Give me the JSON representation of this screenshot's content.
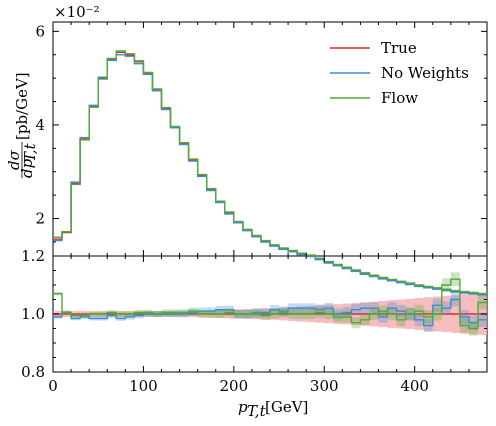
{
  "chart_data": {
    "type": "line",
    "scale_label": "×10⁻²",
    "ylabel": "dσ/dp_T,t [pb/GeV]",
    "ylabel_main": "[pb/GeV]",
    "ylabel_frac_num": "dσ",
    "ylabel_frac_den": "dp",
    "ylabel_frac_sub": "T,t",
    "xlabel": "p",
    "xlabel_sub": "T,t",
    "xlabel_unit": "[GeV]",
    "xlim": [
      0,
      480
    ],
    "x_ticks": [
      "0",
      "100",
      "200",
      "300",
      "400"
    ],
    "x_tick_values": [
      0,
      100,
      200,
      300,
      400
    ],
    "top_panel": {
      "ylim": [
        1.2,
        6.2
      ],
      "y_ticks": [
        "2",
        "4",
        "6"
      ],
      "y_tick_values": [
        2,
        4,
        6
      ],
      "y_bottom_label": "1.2",
      "bin_edges": [
        0,
        10,
        20,
        30,
        40,
        50,
        60,
        70,
        80,
        90,
        100,
        110,
        120,
        130,
        140,
        150,
        160,
        170,
        180,
        190,
        200,
        210,
        220,
        230,
        240,
        250,
        260,
        270,
        280,
        290,
        300,
        310,
        320,
        330,
        340,
        350,
        360,
        370,
        380,
        390,
        400,
        410,
        420,
        430,
        440,
        450,
        460,
        470,
        480
      ],
      "series": [
        {
          "name": "True",
          "color": "#e8262a",
          "values": [
            1.56,
            1.7,
            2.75,
            3.7,
            4.4,
            5.0,
            5.4,
            5.55,
            5.5,
            5.35,
            5.1,
            4.75,
            4.35,
            3.95,
            3.6,
            3.25,
            2.92,
            2.62,
            2.35,
            2.12,
            1.92,
            1.75,
            1.62,
            1.51,
            1.42,
            1.35,
            1.3,
            1.24,
            1.2,
            1.13,
            1.06,
            1.0,
            0.94,
            0.88,
            0.82,
            0.77,
            0.72,
            0.68,
            0.64,
            0.6,
            0.56,
            0.53,
            0.5,
            0.47,
            0.44,
            0.42,
            0.4,
            0.38
          ]
        },
        {
          "name": "No Weights",
          "color": "#3b8cd0",
          "values": [
            1.53,
            1.72,
            2.78,
            3.73,
            4.42,
            5.02,
            5.38,
            5.5,
            5.47,
            5.31,
            5.08,
            4.73,
            4.33,
            3.94,
            3.58,
            3.23,
            2.9,
            2.6,
            2.34,
            2.1,
            1.91,
            1.74,
            1.61,
            1.5,
            1.41,
            1.34,
            1.29,
            1.23,
            1.19,
            1.12,
            1.05,
            0.99,
            0.93,
            0.87,
            0.81,
            0.76,
            0.71,
            0.67,
            0.63,
            0.59,
            0.55,
            0.52,
            0.49,
            0.46,
            0.43,
            0.41,
            0.39,
            0.37
          ]
        },
        {
          "name": "Flow",
          "color": "#4faa3c",
          "values": [
            1.6,
            1.72,
            2.73,
            3.68,
            4.38,
            4.98,
            5.42,
            5.58,
            5.52,
            5.37,
            5.12,
            4.77,
            4.37,
            3.97,
            3.62,
            3.27,
            2.94,
            2.64,
            2.37,
            2.14,
            1.94,
            1.77,
            1.64,
            1.53,
            1.44,
            1.37,
            1.32,
            1.26,
            1.22,
            1.15,
            1.08,
            1.02,
            0.96,
            0.9,
            0.84,
            0.79,
            0.74,
            0.7,
            0.66,
            0.62,
            0.58,
            0.55,
            0.52,
            0.49,
            0.46,
            0.44,
            0.42,
            0.4
          ]
        }
      ]
    },
    "ratio_panel": {
      "ylim": [
        0.8,
        1.2
      ],
      "y_ticks": [
        "0.8",
        "1.0"
      ],
      "y_tick_values": [
        0.8,
        1.0
      ],
      "band_upper": [
        1.01,
        1.01,
        1.01,
        1.01,
        1.01,
        1.01,
        1.01,
        1.01,
        1.01,
        1.01,
        1.01,
        1.01,
        1.01,
        1.01,
        1.01,
        1.01,
        1.012,
        1.013,
        1.014,
        1.015,
        1.016,
        1.017,
        1.018,
        1.019,
        1.02,
        1.022,
        1.024,
        1.026,
        1.028,
        1.03,
        1.032,
        1.034,
        1.036,
        1.038,
        1.04,
        1.042,
        1.045,
        1.048,
        1.05,
        1.052,
        1.055,
        1.058,
        1.06,
        1.062,
        1.065,
        1.068,
        1.07,
        1.072
      ],
      "band_lower": [
        0.99,
        0.99,
        0.99,
        0.99,
        0.99,
        0.99,
        0.99,
        0.99,
        0.99,
        0.99,
        0.99,
        0.99,
        0.99,
        0.99,
        0.99,
        0.99,
        0.988,
        0.987,
        0.986,
        0.985,
        0.984,
        0.983,
        0.982,
        0.981,
        0.98,
        0.978,
        0.976,
        0.974,
        0.972,
        0.97,
        0.968,
        0.966,
        0.964,
        0.962,
        0.96,
        0.958,
        0.955,
        0.952,
        0.95,
        0.948,
        0.945,
        0.942,
        0.94,
        0.938,
        0.935,
        0.932,
        0.93,
        0.928
      ],
      "series": [
        {
          "name": "No Weights",
          "color": "#3b8cd0",
          "values": [
            0.99,
            1.005,
            0.985,
            0.99,
            0.985,
            0.985,
            0.995,
            0.985,
            0.99,
            0.995,
            1.0,
            1.0,
            1.0,
            1.0,
            1.0,
            1.005,
            1.01,
            1.01,
            1.015,
            1.015,
            1.0,
            1.0,
            1.005,
            1.005,
            1.015,
            1.01,
            1.02,
            1.02,
            1.02,
            1.015,
            1.02,
            1.0,
            1.005,
            1.015,
            1.02,
            1.02,
            0.99,
            1.02,
            1.01,
            1.0,
            0.98,
            0.96,
            1.03,
            1.02,
            1.05,
            0.99,
            0.97,
            0.98
          ]
        },
        {
          "name": "Flow",
          "color": "#4faa3c",
          "values": [
            1.07,
            1.005,
            0.995,
            0.995,
            1.0,
            1.0,
            1.005,
            1.0,
            1.0,
            1.005,
            1.005,
            1.0,
            1.005,
            1.005,
            1.005,
            1.01,
            1.0,
            1.0,
            1.0,
            1.005,
            1.0,
            1.0,
            1.0,
            0.995,
            1.0,
            1.005,
            1.0,
            1.0,
            1.0,
            1.005,
            1.0,
            0.99,
            0.99,
            0.97,
            0.98,
            1.0,
            1.01,
            1.0,
            0.98,
            1.0,
            1.01,
            0.99,
            1.0,
            1.1,
            1.12,
            0.96,
            0.95,
            1.04
          ]
        }
      ]
    },
    "legend": {
      "position": "top-right",
      "entries": [
        {
          "label": "True",
          "color": "#e8262a"
        },
        {
          "label": "No Weights",
          "color": "#3b8cd0"
        },
        {
          "label": "Flow",
          "color": "#4faa3c"
        }
      ]
    }
  }
}
